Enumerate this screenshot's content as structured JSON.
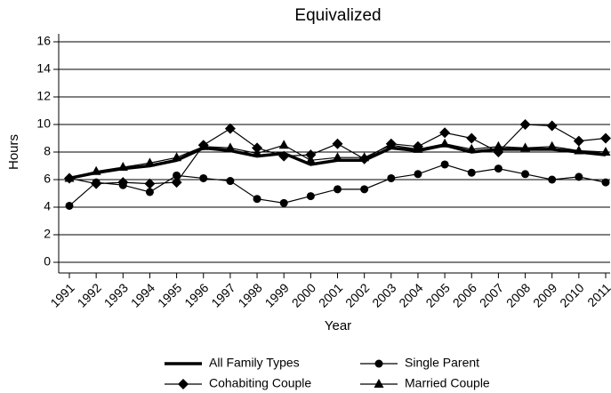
{
  "chart_data": {
    "type": "line",
    "title": "Equivalized",
    "x_label": "Year",
    "y_label": "Hours",
    "categories": [
      "1991",
      "1992",
      "1993",
      "1994",
      "1995",
      "1996",
      "1997",
      "1998",
      "1999",
      "2000",
      "2001",
      "2002",
      "2003",
      "2004",
      "2005",
      "2006",
      "2007",
      "2008",
      "2009",
      "2010",
      "2011"
    ],
    "series": [
      {
        "name": "All Family Types",
        "color": "#000000",
        "marker": "none",
        "values": [
          6.1,
          6.5,
          6.8,
          7.0,
          7.4,
          8.3,
          8.1,
          7.7,
          7.9,
          7.1,
          7.4,
          7.4,
          8.3,
          8.1,
          8.5,
          8.0,
          8.2,
          8.2,
          8.2,
          8.0,
          7.8
        ]
      },
      {
        "name": "Single Parent",
        "color": "#000000",
        "marker": "circle",
        "values": [
          4.1,
          5.8,
          5.6,
          5.1,
          6.3,
          6.1,
          5.9,
          4.6,
          4.3,
          4.8,
          5.3,
          5.3,
          6.1,
          6.4,
          7.1,
          6.5,
          6.8,
          6.4,
          6.0,
          6.2,
          5.8
        ]
      },
      {
        "name": "Cohabiting Couple",
        "color": "#000000",
        "marker": "diamond",
        "values": [
          6.1,
          5.7,
          5.8,
          5.7,
          5.8,
          8.5,
          9.7,
          8.3,
          7.7,
          7.8,
          8.6,
          7.5,
          8.6,
          8.4,
          9.4,
          9.0,
          8.0,
          10.0,
          9.9,
          8.8,
          9.0
        ]
      },
      {
        "name": "Married Couple",
        "color": "#000000",
        "marker": "triangle",
        "values": [
          6.1,
          6.6,
          6.9,
          7.2,
          7.6,
          8.4,
          8.3,
          7.9,
          8.5,
          7.4,
          7.6,
          7.6,
          8.5,
          8.2,
          8.6,
          8.2,
          8.4,
          8.3,
          8.4,
          8.1,
          8.0
        ]
      }
    ],
    "ylim": [
      0,
      16
    ],
    "yticks": [
      0,
      2,
      4,
      6,
      8,
      10,
      12,
      14,
      16
    ],
    "grid": true,
    "legend": "bottom"
  }
}
